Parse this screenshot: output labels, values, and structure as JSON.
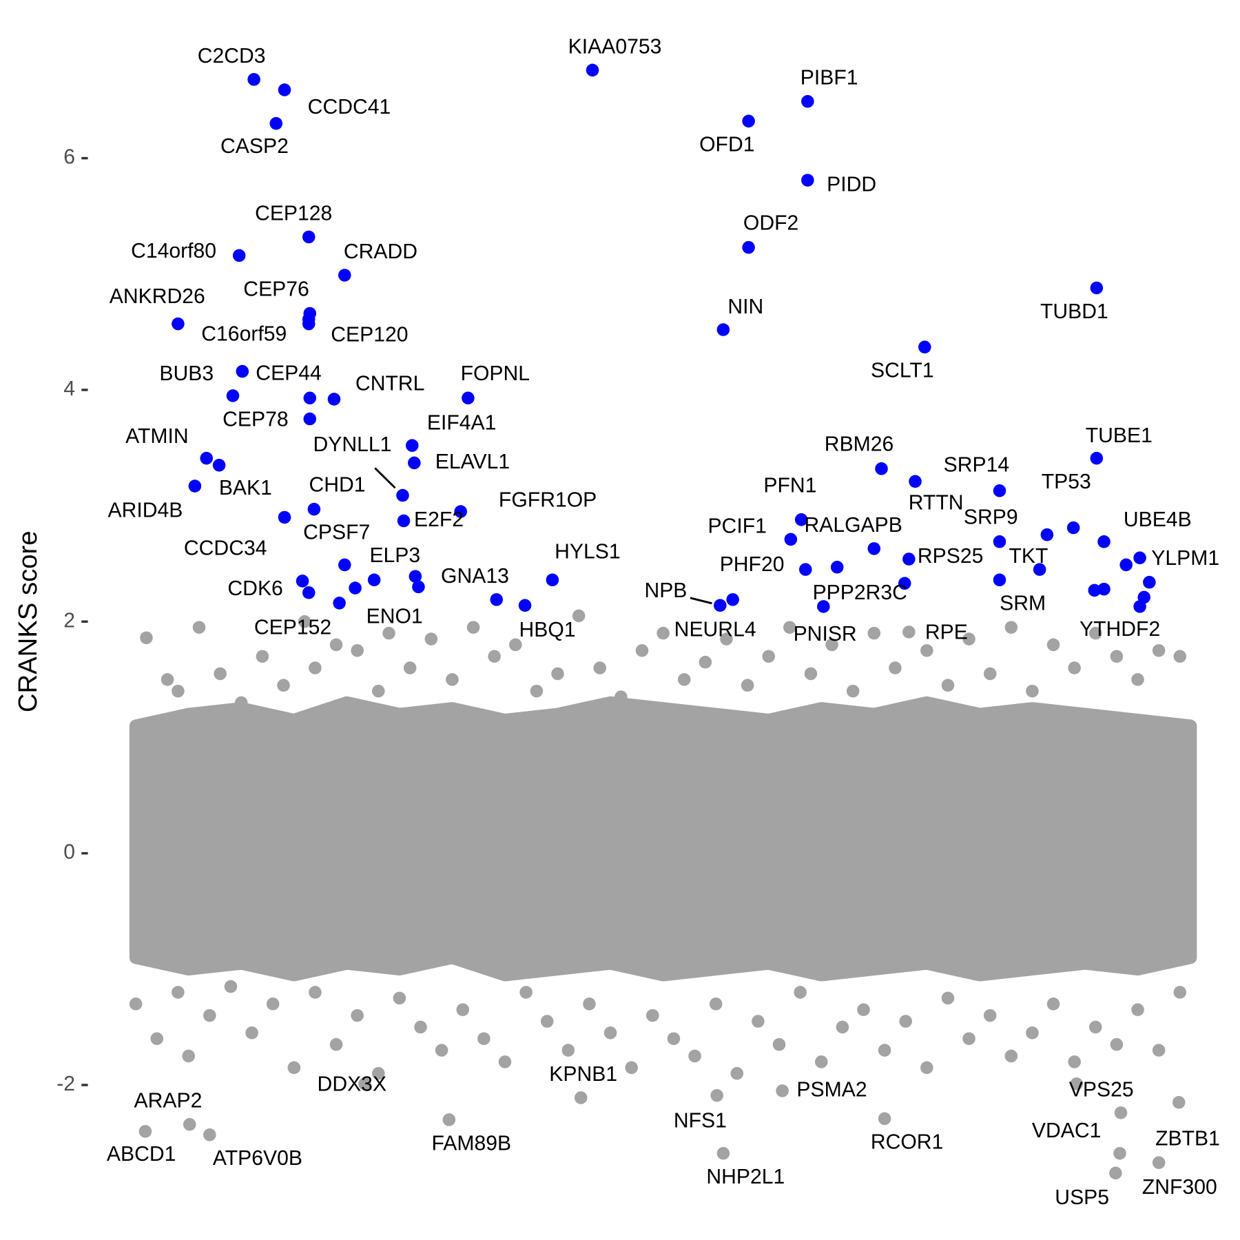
{
  "chart_data": {
    "type": "scatter",
    "y_label": "CRANKS score",
    "xlim": [
      0,
      100
    ],
    "ylim": [
      -2.9,
      7.0
    ],
    "yticks": [
      -2,
      0,
      2,
      4,
      6
    ],
    "band": {
      "color": "#a3a3a3",
      "x": [
        0,
        5,
        10,
        15,
        20,
        25,
        30,
        35,
        40,
        45,
        50,
        55,
        60,
        65,
        70,
        75,
        80,
        85,
        90,
        95,
        100
      ],
      "high": [
        1.1,
        1.2,
        1.25,
        1.15,
        1.3,
        1.2,
        1.25,
        1.15,
        1.2,
        1.3,
        1.25,
        1.2,
        1.15,
        1.25,
        1.2,
        1.3,
        1.2,
        1.25,
        1.2,
        1.15,
        1.1
      ],
      "low": [
        -0.9,
        -1.0,
        -0.95,
        -1.05,
        -0.95,
        -1.0,
        -0.9,
        -1.05,
        -1.0,
        -0.95,
        -1.05,
        -1.0,
        -0.95,
        -1.05,
        -1.0,
        -0.95,
        -1.05,
        -1.0,
        -0.95,
        -1.0,
        -0.9
      ]
    },
    "series": [
      {
        "color": "#a3a3a3",
        "x": [
          1,
          3,
          4,
          6,
          8,
          10,
          12,
          14,
          16,
          17,
          19,
          21,
          23,
          24,
          26,
          28,
          30,
          32,
          34,
          36,
          38,
          40,
          42,
          44,
          46,
          48,
          50,
          52,
          54,
          56,
          58,
          60,
          62,
          64,
          66,
          68,
          70,
          72,
          75,
          77,
          79,
          81,
          83,
          85,
          87,
          89,
          91,
          93,
          95,
          97,
          99,
          0,
          2,
          4,
          5,
          7,
          9,
          11,
          13,
          15,
          17,
          19,
          21,
          23,
          25,
          27,
          29,
          31,
          33,
          35,
          37,
          39,
          41,
          43,
          45,
          47,
          49,
          51,
          53,
          55,
          57,
          59,
          61,
          63,
          65,
          67,
          69,
          71,
          73,
          75,
          77,
          79,
          81,
          83,
          85,
          87,
          89,
          91,
          93,
          95,
          97,
          99
        ],
        "values": [
          1.86,
          1.5,
          1.4,
          1.95,
          1.55,
          1.3,
          1.7,
          1.45,
          2.0,
          1.6,
          1.8,
          1.75,
          1.4,
          1.9,
          1.6,
          1.85,
          1.5,
          1.95,
          1.7,
          1.8,
          1.4,
          1.55,
          2.05,
          1.6,
          1.35,
          1.75,
          1.9,
          1.5,
          1.65,
          1.85,
          1.45,
          1.7,
          1.95,
          1.55,
          1.8,
          1.4,
          1.9,
          1.6,
          1.75,
          1.45,
          1.85,
          1.55,
          1.95,
          1.4,
          1.8,
          1.6,
          1.9,
          1.7,
          1.5,
          1.75,
          1.7,
          -1.3,
          -1.6,
          -1.2,
          -1.75,
          -1.4,
          -1.15,
          -1.55,
          -1.3,
          -1.85,
          -1.2,
          -1.65,
          -1.4,
          -1.9,
          -1.25,
          -1.5,
          -1.7,
          -1.35,
          -1.6,
          -1.8,
          -1.2,
          -1.45,
          -1.7,
          -1.3,
          -1.55,
          -1.85,
          -1.4,
          -1.6,
          -1.75,
          -1.3,
          -1.9,
          -1.45,
          -1.65,
          -1.2,
          -1.8,
          -1.5,
          -1.35,
          -1.7,
          -1.45,
          -1.85,
          -1.25,
          -1.6,
          -1.4,
          -1.75,
          -1.55,
          -1.3,
          -1.8,
          -1.5,
          -1.65,
          -1.35,
          -1.7,
          -1.2
        ]
      },
      {
        "color": "#a3a3a3",
        "labels": [
          "RPE",
          "ABCD1",
          "ARAP2",
          "ATP6V0B",
          "DDX3X",
          "FAM89B",
          "KPNB1",
          "NFS1",
          "NHP2L1",
          "PSMA2",
          "RCOR1",
          "VPS25",
          "VDAC1",
          "USP5",
          "ZNF300",
          "ZBTB1",
          null
        ],
        "x": [
          73.3,
          0.9,
          5.1,
          7.0,
          21.7,
          29.7,
          42.2,
          55.1,
          55.7,
          61.3,
          71.0,
          89.2,
          93.4,
          92.9,
          97.0,
          98.9,
          93.3
        ],
        "values": [
          1.91,
          -2.4,
          -2.34,
          -2.43,
          -1.99,
          -2.3,
          -2.11,
          -2.09,
          -2.59,
          -2.05,
          -2.29,
          -1.99,
          -2.24,
          -2.76,
          -2.67,
          -2.15,
          -2.59
        ]
      },
      {
        "color": "#0000ff",
        "labels": [
          "C2CD3",
          "CCDC41",
          "CASP2",
          "KIAA0753",
          "PIBF1",
          "OFD1",
          "PIDD",
          "ODF2",
          "NIN",
          "CEP128",
          "C14orf80",
          "CRADD",
          "CEP76",
          "C16orf59",
          "CEP120",
          "ANKRD26",
          "TUBD1",
          "SCLT1",
          "BUB3",
          "CEP44",
          "CNTRL",
          "FOPNL",
          "CEP78",
          null,
          "EIF4A1",
          "ELAVL1",
          "ATMIN",
          "BAK1",
          "ARID4B",
          "DYNLL1",
          "E2F2",
          "CHD1",
          "CCDC34",
          "FGFR1OP",
          "CPSF7",
          "ELP3",
          null,
          null,
          "CDK6",
          "CEP152",
          null,
          "ENO1",
          "GNA13",
          "HBQ1",
          "HYLS1",
          "NPB",
          "NEURL4",
          "RBM26",
          "SRP14",
          "RTTN",
          "PFN1",
          "PCIF1",
          "RALGAPB",
          "PHF20",
          null,
          "RPS25",
          "PPP2R3C",
          "PNISR",
          "SRP9",
          "TKT",
          "SRM",
          "TP53",
          null,
          "TUBE1",
          "UBE4B",
          "YLPM1",
          null,
          null,
          null,
          null,
          null,
          "YTHDF2"
        ],
        "x": [
          11.2,
          14.1,
          13.3,
          43.3,
          63.7,
          58.1,
          63.7,
          58.1,
          55.7,
          16.4,
          9.8,
          19.8,
          16.5,
          16.4,
          16.4,
          4.0,
          91.1,
          74.8,
          9.2,
          10.1,
          18.8,
          31.5,
          16.5,
          16.5,
          26.2,
          26.4,
          6.7,
          7.9,
          5.6,
          25.3,
          25.4,
          16.9,
          14.1,
          30.8,
          19.8,
          22.6,
          26.5,
          26.8,
          15.8,
          16.4,
          20.8,
          19.3,
          34.2,
          36.9,
          39.5,
          55.4,
          56.6,
          70.7,
          81.9,
          73.9,
          63.1,
          62.1,
          70.0,
          63.5,
          66.5,
          73.3,
          72.9,
          65.2,
          81.9,
          85.7,
          81.9,
          88.9,
          86.4,
          91.1,
          91.8,
          95.2,
          93.9,
          96.1,
          95.6,
          90.9,
          91.8,
          95.2
        ],
        "values": [
          6.68,
          6.59,
          6.3,
          6.76,
          6.49,
          6.32,
          5.81,
          5.23,
          4.52,
          5.32,
          5.16,
          4.99,
          4.66,
          4.61,
          4.57,
          4.57,
          4.88,
          4.37,
          3.95,
          4.16,
          3.92,
          3.93,
          3.75,
          3.93,
          3.52,
          3.37,
          3.41,
          3.35,
          3.17,
          3.09,
          2.87,
          2.97,
          2.9,
          2.95,
          2.49,
          2.36,
          2.39,
          2.3,
          2.35,
          2.25,
          2.29,
          2.16,
          2.19,
          2.14,
          2.36,
          2.14,
          2.19,
          3.32,
          3.13,
          3.21,
          2.88,
          2.71,
          2.63,
          2.45,
          2.47,
          2.54,
          2.33,
          2.13,
          2.69,
          2.45,
          2.36,
          2.81,
          2.75,
          3.41,
          2.69,
          2.55,
          2.49,
          2.34,
          2.21,
          2.27,
          2.28,
          2.13
        ]
      }
    ]
  }
}
